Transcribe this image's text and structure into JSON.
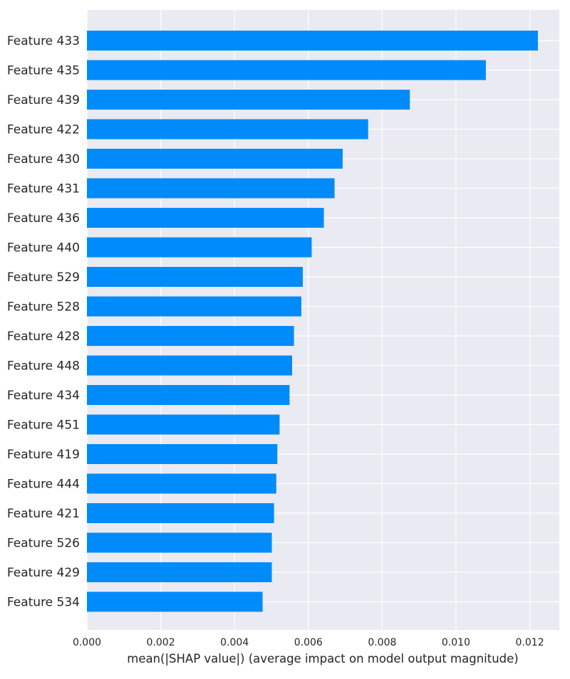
{
  "chart_data": {
    "type": "bar",
    "orientation": "horizontal",
    "title": "",
    "xlabel": "mean(|SHAP value|) (average impact on model output magnitude)",
    "ylabel": "",
    "xlim": [
      0,
      0.0128
    ],
    "xticks": [
      0.0,
      0.002,
      0.004,
      0.006,
      0.008,
      0.01,
      0.012
    ],
    "xtick_labels": [
      "0.000",
      "0.002",
      "0.004",
      "0.006",
      "0.008",
      "0.010",
      "0.012"
    ],
    "grid": true,
    "legend": "none",
    "colors": {
      "bar": "#008BFB",
      "plot_background": "#EAEAF2",
      "gridline": "#FFFFFF",
      "text": "#262626"
    },
    "categories": [
      "Feature 433",
      "Feature 435",
      "Feature 439",
      "Feature 422",
      "Feature 430",
      "Feature 431",
      "Feature 436",
      "Feature 440",
      "Feature 529",
      "Feature 528",
      "Feature 428",
      "Feature 448",
      "Feature 434",
      "Feature 451",
      "Feature 419",
      "Feature 444",
      "Feature 421",
      "Feature 526",
      "Feature 429",
      "Feature 534"
    ],
    "values": [
      0.01222,
      0.01081,
      0.00875,
      0.00762,
      0.00693,
      0.00671,
      0.00642,
      0.00609,
      0.00585,
      0.00581,
      0.00561,
      0.00556,
      0.00549,
      0.00522,
      0.00516,
      0.00513,
      0.00507,
      0.00501,
      0.00501,
      0.00476
    ]
  }
}
